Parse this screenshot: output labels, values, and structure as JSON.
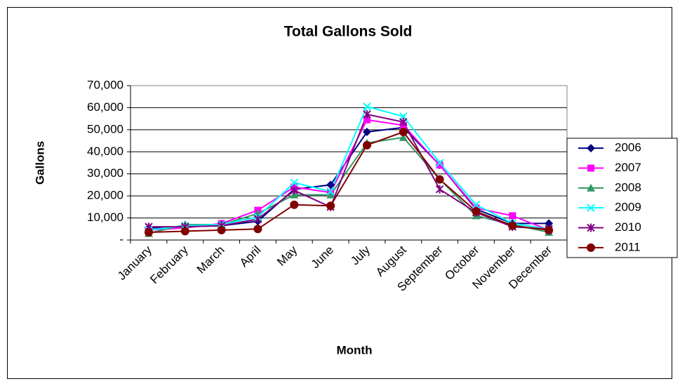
{
  "chart_data": {
    "type": "line",
    "title": "Total Gallons Sold",
    "x_label": "Month",
    "y_label": "Gallons",
    "categories": [
      "January",
      "February",
      "March",
      "April",
      "May",
      "June",
      "July",
      "August",
      "September",
      "October",
      "November",
      "December"
    ],
    "series": [
      {
        "name": "2006",
        "color": "#000080",
        "marker": "diamond",
        "values": [
          5500,
          6000,
          6500,
          8500,
          23000,
          25000,
          49000,
          51000,
          34000,
          14000,
          7500,
          7500
        ]
      },
      {
        "name": "2007",
        "color": "#ff00ff",
        "marker": "square",
        "values": [
          4500,
          5500,
          7500,
          13500,
          24000,
          21500,
          54500,
          52000,
          34000,
          14500,
          11000,
          4500
        ]
      },
      {
        "name": "2008",
        "color": "#339966",
        "marker": "triangle",
        "values": [
          3000,
          7000,
          7000,
          12000,
          20500,
          20500,
          44000,
          46500,
          27500,
          11000,
          7000,
          3500
        ]
      },
      {
        "name": "2009",
        "color": "#00ffff",
        "marker": "x",
        "values": [
          4500,
          6500,
          7000,
          10500,
          26000,
          22000,
          60500,
          56000,
          35000,
          16000,
          7500,
          5000
        ]
      },
      {
        "name": "2010",
        "color": "#800080",
        "marker": "star",
        "values": [
          6000,
          6000,
          6500,
          9500,
          22500,
          15000,
          57000,
          53500,
          23000,
          12500,
          6000,
          5000
        ]
      },
      {
        "name": "2011",
        "color": "#800000",
        "marker": "circle",
        "values": [
          3500,
          4000,
          4500,
          5000,
          16000,
          15500,
          43000,
          49000,
          27500,
          13000,
          6500,
          4500
        ]
      }
    ],
    "ylim": [
      0,
      70000
    ],
    "yticks": [
      {
        "value": 0,
        "label": "-"
      },
      {
        "value": 10000,
        "label": "10,000"
      },
      {
        "value": 20000,
        "label": "20,000"
      },
      {
        "value": 30000,
        "label": "30,000"
      },
      {
        "value": 40000,
        "label": "40,000"
      },
      {
        "value": 50000,
        "label": "50,000"
      },
      {
        "value": 60000,
        "label": "60,000"
      },
      {
        "value": 70000,
        "label": "70,000"
      }
    ],
    "grid": true,
    "legend": "right"
  }
}
